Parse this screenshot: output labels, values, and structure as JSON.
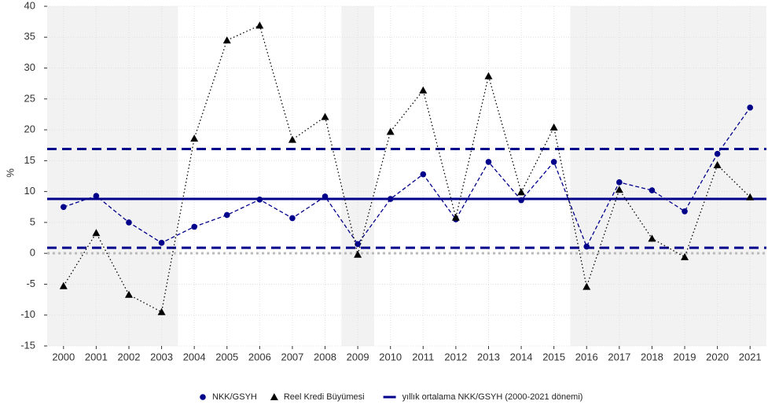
{
  "chart_data": {
    "type": "line",
    "y_label": "%",
    "categories": [
      "2000",
      "2001",
      "2002",
      "2003",
      "2004",
      "2005",
      "2006",
      "2007",
      "2008",
      "2009",
      "2010",
      "2011",
      "2012",
      "2013",
      "2014",
      "2015",
      "2016",
      "2017",
      "2018",
      "2019",
      "2020",
      "2021"
    ],
    "series": [
      {
        "name": "NKK/GSYH",
        "color": "#00008b",
        "marker": "circle",
        "line": "dashed",
        "values": [
          7.5,
          9.3,
          5.0,
          1.7,
          4.3,
          6.2,
          8.7,
          5.7,
          9.2,
          1.5,
          8.8,
          12.8,
          5.5,
          14.8,
          8.6,
          14.8,
          1.1,
          11.5,
          10.2,
          6.8,
          16.1,
          23.6
        ]
      },
      {
        "name": "Reel Kredi Büyümesi",
        "color": "#000000",
        "marker": "triangle",
        "line": "dotted",
        "values": [
          -5.3,
          3.3,
          -6.7,
          -9.5,
          18.6,
          34.5,
          36.9,
          18.4,
          22.1,
          -0.2,
          19.7,
          26.4,
          5.8,
          28.7,
          9.9,
          20.4,
          -5.4,
          10.3,
          2.4,
          -0.6,
          14.3,
          9.1
        ]
      }
    ],
    "hlines": [
      {
        "name": "yıllık ortalama NKK/GSYH (2000-2021 dönemi)",
        "value": 8.8,
        "color": "#00008b",
        "style": "solid"
      },
      {
        "value": 16.9,
        "color": "#00008b",
        "style": "dashed"
      },
      {
        "value": 0.9,
        "color": "#00008b",
        "style": "dashed"
      }
    ],
    "shaded": [
      [
        "2000",
        "2003"
      ],
      [
        "2009",
        "2009"
      ],
      [
        "2016",
        "2021"
      ]
    ],
    "ylim": [
      -15,
      40
    ],
    "yticks": [
      -15,
      -10,
      -5,
      0,
      5,
      10,
      15,
      20,
      25,
      30,
      35,
      40
    ],
    "zero_line": true,
    "grid": true,
    "legend": "bottom"
  }
}
